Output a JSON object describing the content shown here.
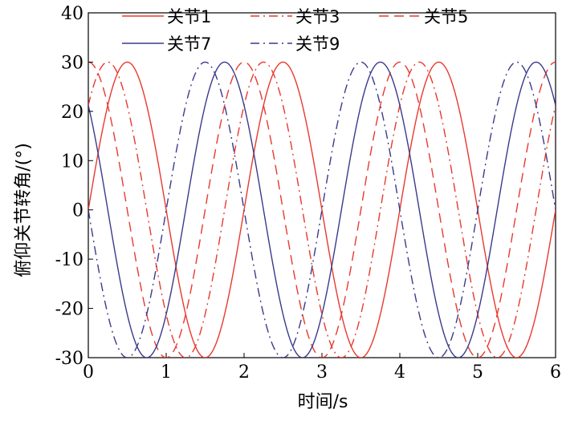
{
  "chart_data": {
    "type": "line",
    "xlabel": "时间/s",
    "ylabel": "俯仰关节转角/(°)",
    "xlim": [
      0,
      6
    ],
    "ylim": [
      -30,
      40
    ],
    "x_ticks": [
      0,
      1,
      2,
      3,
      4,
      5,
      6
    ],
    "y_ticks": [
      -30,
      -20,
      -10,
      0,
      10,
      20,
      30,
      40
    ],
    "grid": false,
    "legend_position": "top",
    "period_s": 2,
    "amplitude_deg": 30,
    "series": [
      {
        "name": "关节1",
        "color": "#e8392f",
        "dash": "solid",
        "phase_deg": 0
      },
      {
        "name": "关节3",
        "color": "#e8392f",
        "dash": "dashdot",
        "phase_deg": 45
      },
      {
        "name": "关节5",
        "color": "#e8392f",
        "dash": "dashed",
        "phase_deg": 90
      },
      {
        "name": "关节7",
        "color": "#3a3a8c",
        "dash": "solid",
        "phase_deg": 135
      },
      {
        "name": "关节9",
        "color": "#3a3a8c",
        "dash": "dashdot",
        "phase_deg": 180
      }
    ]
  }
}
